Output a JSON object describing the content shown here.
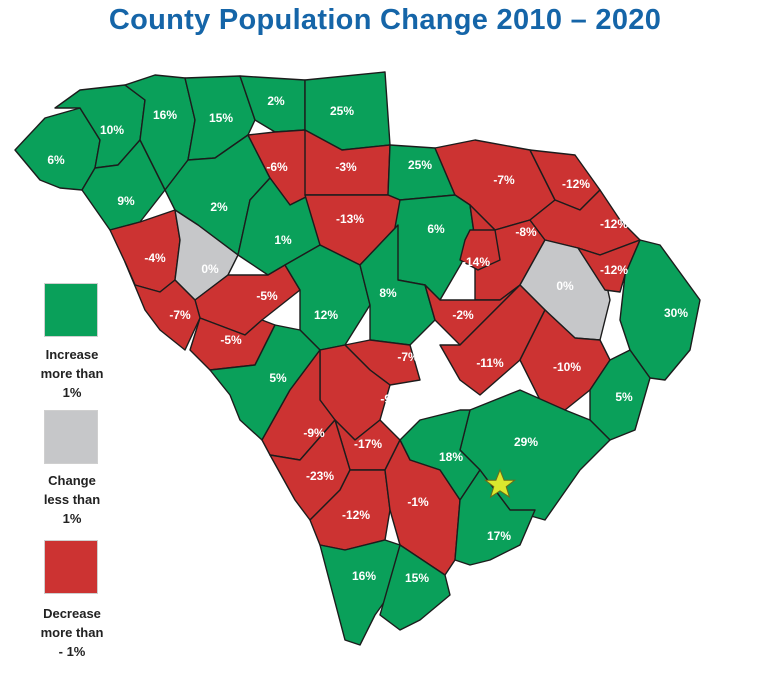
{
  "title": "County Population Change 2010 – 2020",
  "colors": {
    "title": "#1565a8",
    "increase": "#0aa05a",
    "stable": "#c6c7c9",
    "decrease": "#cc3332",
    "star": "#dbe82e"
  },
  "legend": [
    {
      "category": "increase",
      "lines": [
        "Increase",
        "more than",
        "1%"
      ]
    },
    {
      "category": "stable",
      "lines": [
        "Change",
        "less than",
        "1%"
      ]
    },
    {
      "category": "decrease",
      "lines": [
        "Decrease",
        "more than",
        "- 1%"
      ]
    }
  ],
  "marker": {
    "type": "star-icon"
  },
  "counties": [
    {
      "label": "6%",
      "category": "increase"
    },
    {
      "label": "10%",
      "category": "increase"
    },
    {
      "label": "16%",
      "category": "increase"
    },
    {
      "label": "15%",
      "category": "increase"
    },
    {
      "label": "2%",
      "category": "increase"
    },
    {
      "label": "25%",
      "category": "increase"
    },
    {
      "label": "9%",
      "category": "increase"
    },
    {
      "label": "2%",
      "category": "increase"
    },
    {
      "label": "-6%",
      "category": "decrease"
    },
    {
      "label": "-3%",
      "category": "decrease"
    },
    {
      "label": "25%",
      "category": "increase"
    },
    {
      "label": "-7%",
      "category": "decrease"
    },
    {
      "label": "-12%",
      "category": "decrease"
    },
    {
      "label": "-4%",
      "category": "decrease"
    },
    {
      "label": "0%",
      "category": "stable"
    },
    {
      "label": "1%",
      "category": "increase"
    },
    {
      "label": "-13%",
      "category": "decrease"
    },
    {
      "label": "6%",
      "category": "increase"
    },
    {
      "label": "-8%",
      "category": "decrease"
    },
    {
      "label": "-12%",
      "category": "decrease"
    },
    {
      "label": "-14%",
      "category": "decrease"
    },
    {
      "label": "0%",
      "category": "stable"
    },
    {
      "label": "-12%",
      "category": "decrease"
    },
    {
      "label": "-5%",
      "category": "decrease"
    },
    {
      "label": "-7%",
      "category": "decrease"
    },
    {
      "label": "-5%",
      "category": "decrease"
    },
    {
      "label": "12%",
      "category": "increase"
    },
    {
      "label": "8%",
      "category": "increase"
    },
    {
      "label": "-2%",
      "category": "decrease"
    },
    {
      "label": "30%",
      "category": "increase"
    },
    {
      "label": "5%",
      "category": "increase"
    },
    {
      "label": "-7%",
      "category": "decrease"
    },
    {
      "label": "-11%",
      "category": "decrease"
    },
    {
      "label": "-10%",
      "category": "decrease"
    },
    {
      "label": "-9%",
      "category": "decrease"
    },
    {
      "label": "5%",
      "category": "increase"
    },
    {
      "label": "-9%",
      "category": "decrease"
    },
    {
      "label": "-17%",
      "category": "decrease"
    },
    {
      "label": "29%",
      "category": "increase"
    },
    {
      "label": "18%",
      "category": "increase"
    },
    {
      "label": "-23%",
      "category": "decrease"
    },
    {
      "label": "-12%",
      "category": "decrease"
    },
    {
      "label": "-1%",
      "category": "decrease"
    },
    {
      "label": "17%",
      "category": "increase"
    },
    {
      "label": "16%",
      "category": "increase"
    },
    {
      "label": "15%",
      "category": "increase"
    }
  ]
}
